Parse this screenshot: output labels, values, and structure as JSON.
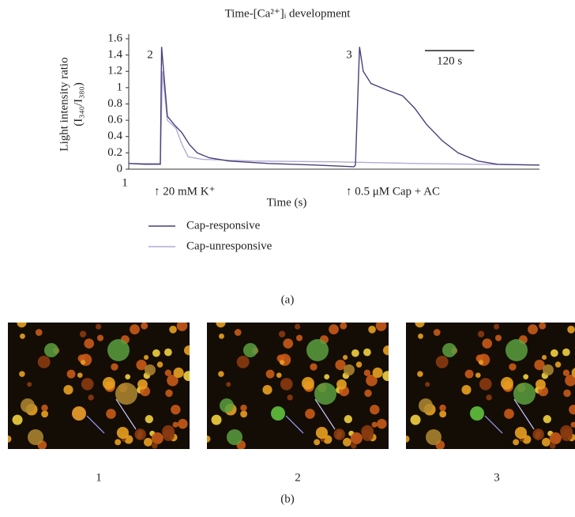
{
  "chart_data": {
    "type": "line",
    "title": "Time-[Ca²⁺]ᵢ development",
    "x_label": "Time (s)",
    "y_label": [
      "Light intensity ratio",
      "(I₃₄₀/I₃₈₀)"
    ],
    "xlim": [
      0,
      1000
    ],
    "ylim": [
      0,
      1.6
    ],
    "yticks": [
      0,
      0.2,
      0.4,
      0.6,
      0.8,
      1,
      1.2,
      1.4,
      1.6
    ],
    "scale_bar": {
      "value": 120,
      "label": "120 s"
    },
    "annotations": [
      "1",
      "2",
      "3",
      "↑ 20 mM K⁺",
      "↑ 0.5 μM Cap + AC"
    ],
    "series": [
      {
        "name": "Cap-responsive",
        "color": "#4a3f7a",
        "x": [
          0,
          40,
          77,
          80,
          94,
          110,
          129,
          148,
          167,
          196,
          244,
          340,
          456,
          548,
          552,
          562,
          571,
          590,
          629,
          667,
          696,
          725,
          763,
          802,
          850,
          898,
          1000
        ],
        "values": [
          0.07,
          0.06,
          0.06,
          1.5,
          0.65,
          0.55,
          0.45,
          0.3,
          0.2,
          0.14,
          0.1,
          0.07,
          0.05,
          0.03,
          0.05,
          1.5,
          1.2,
          1.05,
          0.97,
          0.9,
          0.75,
          0.55,
          0.35,
          0.2,
          0.1,
          0.06,
          0.05
        ]
      },
      {
        "name": "Cap-unresponsive",
        "color": "#b4aad4",
        "x": [
          0,
          40,
          77,
          82,
          94,
          115,
          130,
          145,
          180,
          300,
          500,
          700,
          1000
        ],
        "values": [
          0.07,
          0.07,
          0.07,
          1.2,
          0.6,
          0.5,
          0.3,
          0.15,
          0.12,
          0.1,
          0.09,
          0.07,
          0.05
        ]
      }
    ]
  },
  "panel_labels": [
    "(a)",
    "(b)"
  ],
  "image_captions": [
    "1",
    "2",
    "3"
  ]
}
